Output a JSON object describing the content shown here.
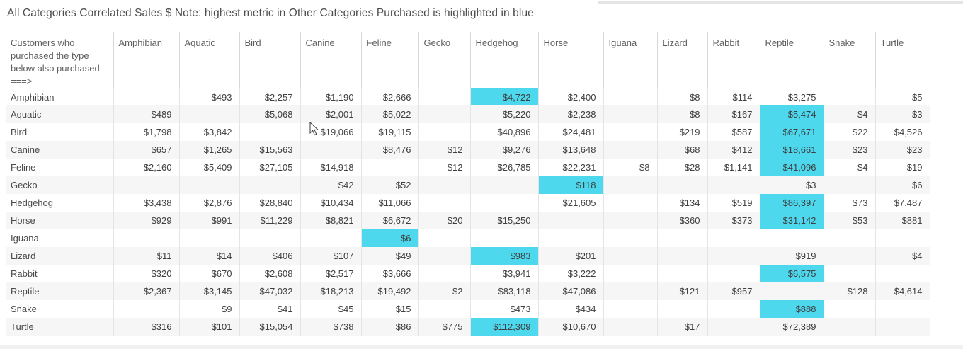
{
  "title": "All Categories Correlated Sales $ Note: highest metric in Other Categories Purchased is highlighted in blue",
  "colors": {
    "highlight": "#4dd8ee"
  },
  "table": {
    "corner_label": "Customers who purchased the type below also purchased ===>",
    "columns": [
      "Amphibian",
      "Aquatic",
      "Bird",
      "Canine",
      "Feline",
      "Gecko",
      "Hedgehog",
      "Horse",
      "Iguana",
      "Lizard",
      "Rabbit",
      "Reptile",
      "Snake",
      "Turtle"
    ],
    "rows": [
      {
        "name": "Amphibian",
        "values": [
          "",
          "$493",
          "$2,257",
          "$1,190",
          "$2,666",
          "",
          "$4,722",
          "$2,400",
          "",
          "$8",
          "$114",
          "$3,275",
          "",
          "$5"
        ],
        "highlight": 6
      },
      {
        "name": "Aquatic",
        "values": [
          "$489",
          "",
          "$5,068",
          "$2,001",
          "$5,022",
          "",
          "$5,220",
          "$2,238",
          "",
          "$8",
          "$167",
          "$5,474",
          "$4",
          "$3"
        ],
        "highlight": 11
      },
      {
        "name": "Bird",
        "values": [
          "$1,798",
          "$3,842",
          "",
          "$19,066",
          "$19,115",
          "",
          "$40,896",
          "$24,481",
          "",
          "$219",
          "$587",
          "$67,671",
          "$22",
          "$4,526"
        ],
        "highlight": 11
      },
      {
        "name": "Canine",
        "values": [
          "$657",
          "$1,265",
          "$15,563",
          "",
          "$8,476",
          "$12",
          "$9,276",
          "$13,648",
          "",
          "$68",
          "$412",
          "$18,661",
          "$23",
          "$23"
        ],
        "highlight": 11
      },
      {
        "name": "Feline",
        "values": [
          "$2,160",
          "$5,409",
          "$27,105",
          "$14,918",
          "",
          "$12",
          "$26,785",
          "$22,231",
          "$8",
          "$28",
          "$1,141",
          "$41,096",
          "$4",
          "$19"
        ],
        "highlight": 11
      },
      {
        "name": "Gecko",
        "values": [
          "",
          "",
          "",
          "$42",
          "$52",
          "",
          "",
          "$118",
          "",
          "",
          "",
          "$3",
          "",
          "$6"
        ],
        "highlight": 7
      },
      {
        "name": "Hedgehog",
        "values": [
          "$3,438",
          "$2,876",
          "$28,840",
          "$10,434",
          "$11,066",
          "",
          "",
          "$21,605",
          "",
          "$134",
          "$519",
          "$86,397",
          "$73",
          "$7,487"
        ],
        "highlight": 11
      },
      {
        "name": "Horse",
        "values": [
          "$929",
          "$991",
          "$11,229",
          "$8,821",
          "$6,672",
          "$20",
          "$15,250",
          "",
          "",
          "$360",
          "$373",
          "$31,142",
          "$53",
          "$881"
        ],
        "highlight": 11
      },
      {
        "name": "Iguana",
        "values": [
          "",
          "",
          "",
          "",
          "$6",
          "",
          "",
          "",
          "",
          "",
          "",
          "",
          "",
          ""
        ],
        "highlight": 4
      },
      {
        "name": "Lizard",
        "values": [
          "$11",
          "$14",
          "$406",
          "$107",
          "$49",
          "",
          "$983",
          "$201",
          "",
          "",
          "",
          "$919",
          "",
          "$4"
        ],
        "highlight": 6
      },
      {
        "name": "Rabbit",
        "values": [
          "$320",
          "$670",
          "$2,608",
          "$2,517",
          "$3,666",
          "",
          "$3,941",
          "$3,222",
          "",
          "",
          "",
          "$6,575",
          "",
          ""
        ],
        "highlight": 11
      },
      {
        "name": "Reptile",
        "values": [
          "$2,367",
          "$3,145",
          "$47,032",
          "$18,213",
          "$19,492",
          "$2",
          "$83,118",
          "$47,086",
          "",
          "$121",
          "$957",
          "",
          "$128",
          "$4,614"
        ],
        "highlight": null
      },
      {
        "name": "Snake",
        "values": [
          "",
          "$9",
          "$41",
          "$45",
          "$15",
          "",
          "$473",
          "$434",
          "",
          "",
          "",
          "$888",
          "",
          ""
        ],
        "highlight": 11
      },
      {
        "name": "Turtle",
        "values": [
          "$316",
          "$101",
          "$15,054",
          "$738",
          "$86",
          "$775",
          "$112,309",
          "$10,670",
          "",
          "$17",
          "",
          "$72,389",
          "",
          ""
        ],
        "highlight": 6
      }
    ]
  }
}
